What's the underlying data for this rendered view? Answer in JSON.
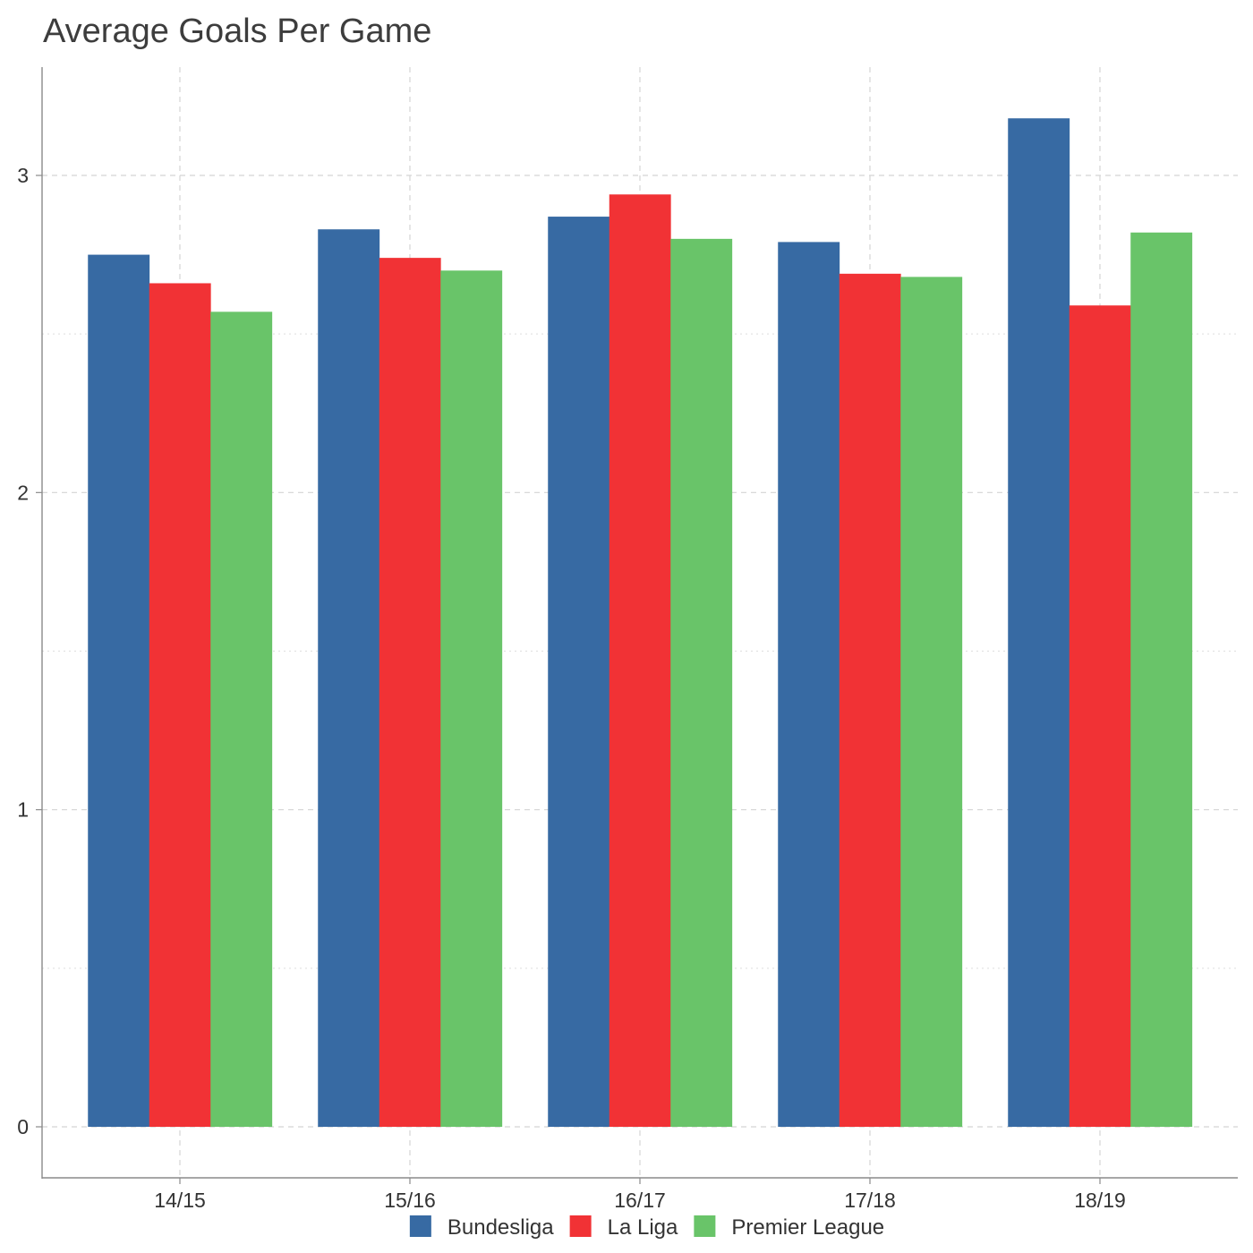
{
  "chart_data": {
    "type": "bar",
    "title": "Average Goals Per Game",
    "xlabel": "",
    "ylabel": "",
    "categories": [
      "14/15",
      "15/16",
      "16/17",
      "17/18",
      "18/19"
    ],
    "series": [
      {
        "name": "Bundesliga",
        "color": "#376AA3",
        "values": [
          2.75,
          2.83,
          2.87,
          2.79,
          3.18
        ]
      },
      {
        "name": "La Liga",
        "color": "#F13235",
        "values": [
          2.66,
          2.74,
          2.94,
          2.69,
          2.59
        ]
      },
      {
        "name": "Premier League",
        "color": "#69C469",
        "values": [
          2.57,
          2.7,
          2.8,
          2.68,
          2.82
        ]
      }
    ],
    "ylim": [
      -0.16,
      3.35
    ],
    "yticks": [
      0,
      1,
      2,
      3
    ],
    "yticks_minor": [
      0.5,
      1.5,
      2.5
    ],
    "grid": true,
    "legend_position": "bottom"
  }
}
